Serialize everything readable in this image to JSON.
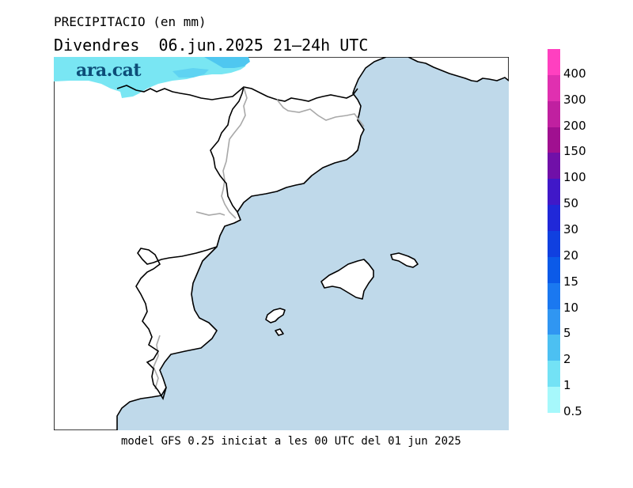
{
  "header": {
    "title": "PRECIPITACIO (en mm)",
    "subtitle": "Divendres  06.jun.2025 21—24h UTC"
  },
  "logo": {
    "text": "ara.cat"
  },
  "footer": {
    "text": "model GFS 0.25 iniciat a les 00 UTC del 01 jun 2025"
  },
  "map": {
    "sea_color": "#bfd9ea",
    "land_color": "#ffffff",
    "coast_color": "#000000",
    "border_color": "#a8a8a8",
    "precip_light_color": "#79e6f3",
    "precip_mid_color": "#4fc7f0"
  },
  "legend": {
    "items": [
      {
        "label": "400",
        "color": "#ff40c0"
      },
      {
        "label": "300",
        "color": "#e030b0"
      },
      {
        "label": "200",
        "color": "#c020a0"
      },
      {
        "label": "150",
        "color": "#a01090"
      },
      {
        "label": "100",
        "color": "#7010a8"
      },
      {
        "label": "50",
        "color": "#4018c8"
      },
      {
        "label": "30",
        "color": "#2028d8"
      },
      {
        "label": "20",
        "color": "#1040e0"
      },
      {
        "label": "15",
        "color": "#0b5ae8"
      },
      {
        "label": "10",
        "color": "#1a78f0"
      },
      {
        "label": "5",
        "color": "#3096f2"
      },
      {
        "label": "2",
        "color": "#4cc0f2"
      },
      {
        "label": "1",
        "color": "#73e2f5"
      },
      {
        "label": "0.5",
        "color": "#a6f8fb"
      }
    ]
  }
}
